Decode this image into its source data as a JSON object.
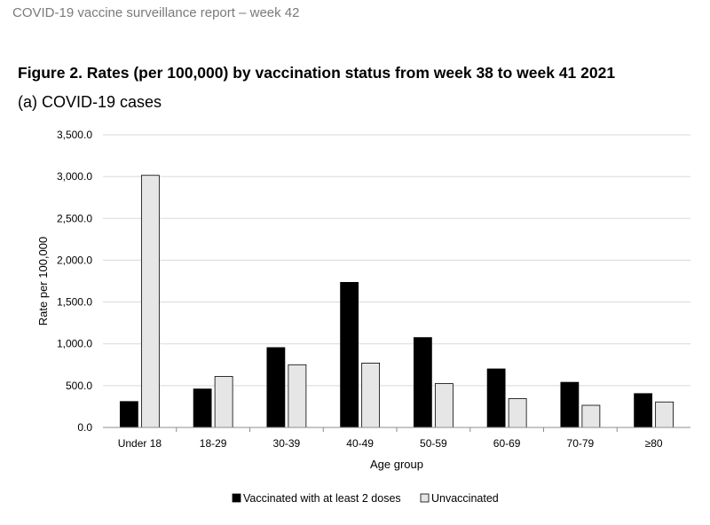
{
  "report": {
    "header": "COVID-19 vaccine surveillance report – week 42",
    "figure_title": "Figure 2. Rates (per 100,000) by vaccination status from week 38 to week 41 2021",
    "figure_subtitle": "(a) COVID-19 cases"
  },
  "chart_data": {
    "type": "bar",
    "title": "",
    "xlabel": "Age group",
    "ylabel": "Rate per 100,000",
    "ylim": [
      0,
      3500
    ],
    "yticks": [
      0,
      500,
      1000,
      1500,
      2000,
      2500,
      3000,
      3500
    ],
    "ytick_labels": [
      "0.0",
      "500.0",
      "1,000.0",
      "1,500.0",
      "2,000.0",
      "2,500.0",
      "3,000.0",
      "3,500.0"
    ],
    "grid": true,
    "legend_position": "bottom",
    "categories": [
      "Under 18",
      "18-29",
      "30-39",
      "40-49",
      "50-59",
      "60-69",
      "70-79",
      "≥80"
    ],
    "series": [
      {
        "name": "Vaccinated with at least 2 doses",
        "color": "#000000",
        "values": [
          310,
          460,
          955,
          1735,
          1075,
          700,
          540,
          405
        ]
      },
      {
        "name": "Unvaccinated",
        "color": "#e6e6e6",
        "values": [
          3015,
          610,
          750,
          770,
          525,
          345,
          265,
          305
        ]
      }
    ]
  }
}
